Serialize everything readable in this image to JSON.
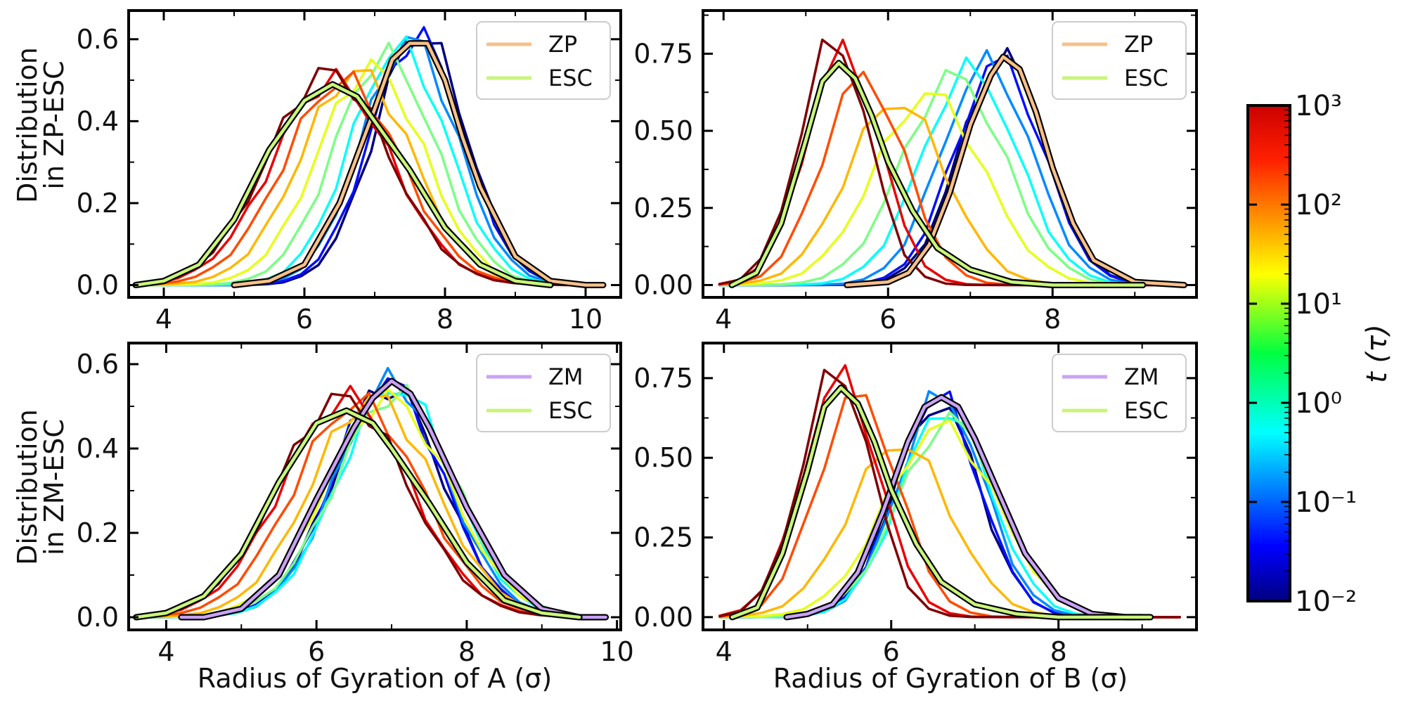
{
  "figure": {
    "ylabel_top": [
      "Distribution",
      "in ZP-ESC"
    ],
    "ylabel_bottom": [
      "Distribution",
      "in ZM-ESC"
    ],
    "xlabel_left": "Radius of Gyration of A (σ)",
    "xlabel_right": "Radius of Gyration of B (σ)",
    "colorbar": {
      "label": "t (τ)",
      "ticks": [
        "10³",
        "10²",
        "10¹",
        "10⁰",
        "10⁻¹",
        "10⁻²"
      ],
      "scale": "log",
      "range": [
        0.01,
        1000
      ],
      "colormap": "jet"
    }
  },
  "chart_data": [
    {
      "type": "line",
      "panel": "top-left",
      "xlim": [
        3.5,
        10.5
      ],
      "ylim": [
        -0.03,
        0.67
      ],
      "xticks": [
        4,
        6,
        8,
        10
      ],
      "xtick_labels": [
        "4",
        "6",
        "8",
        "10"
      ],
      "yticks": [
        0.0,
        0.2,
        0.4,
        0.6
      ],
      "ytick_labels": [
        "0.0",
        "0.2",
        "0.4",
        "0.6"
      ],
      "legend": {
        "placement": "top-right",
        "entries": [
          {
            "label": "ZP",
            "color": "#f7c08a"
          },
          {
            "label": "ESC",
            "color": "#c9f57a"
          }
        ]
      },
      "series": [
        {
          "name": "ZP",
          "color": "#f7c08a",
          "x": [
            5.0,
            5.5,
            6.0,
            6.5,
            7.0,
            7.25,
            7.5,
            7.75,
            8.0,
            8.25,
            8.5,
            9.0,
            9.5,
            10.0,
            10.25
          ],
          "y": [
            0.0,
            0.01,
            0.05,
            0.2,
            0.43,
            0.55,
            0.59,
            0.59,
            0.5,
            0.36,
            0.24,
            0.07,
            0.01,
            0.0,
            0.0
          ]
        },
        {
          "name": "ESC",
          "color": "#c9f57a",
          "x": [
            3.6,
            4.0,
            4.5,
            5.0,
            5.5,
            6.0,
            6.4,
            6.75,
            7.0,
            7.5,
            8.0,
            8.5,
            9.0,
            9.5
          ],
          "y": [
            0.0,
            0.01,
            0.05,
            0.16,
            0.33,
            0.45,
            0.49,
            0.46,
            0.4,
            0.28,
            0.14,
            0.05,
            0.01,
            0.0
          ]
        }
      ],
      "time_curves": [
        {
          "t": 0.01,
          "center": 7.65,
          "width": 0.65,
          "height": 0.62
        },
        {
          "t": 0.05,
          "center": 7.6,
          "width": 0.66,
          "height": 0.61
        },
        {
          "t": 0.2,
          "center": 7.5,
          "width": 0.67,
          "height": 0.6
        },
        {
          "t": 0.8,
          "center": 7.35,
          "width": 0.69,
          "height": 0.58
        },
        {
          "t": 3,
          "center": 7.15,
          "width": 0.72,
          "height": 0.56
        },
        {
          "t": 10,
          "center": 6.95,
          "width": 0.76,
          "height": 0.53
        },
        {
          "t": 30,
          "center": 6.75,
          "width": 0.8,
          "height": 0.52
        },
        {
          "t": 100,
          "center": 6.55,
          "width": 0.83,
          "height": 0.5
        },
        {
          "t": 300,
          "center": 6.4,
          "width": 0.85,
          "height": 0.5
        },
        {
          "t": 1000,
          "center": 6.35,
          "width": 0.86,
          "height": 0.52
        }
      ]
    },
    {
      "type": "line",
      "panel": "top-right",
      "xlim": [
        3.75,
        9.75
      ],
      "ylim": [
        -0.04,
        0.89
      ],
      "xticks": [
        4,
        6,
        8
      ],
      "xtick_labels": [
        "4",
        "6",
        "8"
      ],
      "yticks": [
        0.0,
        0.25,
        0.5,
        0.75
      ],
      "ytick_labels": [
        "0.00",
        "0.25",
        "0.50",
        "0.75"
      ],
      "legend": {
        "placement": "top-right",
        "entries": [
          {
            "label": "ZP",
            "color": "#f7c08a"
          },
          {
            "label": "ESC",
            "color": "#c9f57a"
          }
        ]
      },
      "series": [
        {
          "name": "ZP",
          "color": "#f7c08a",
          "x": [
            5.5,
            6.0,
            6.25,
            6.5,
            6.75,
            7.0,
            7.25,
            7.4,
            7.6,
            7.8,
            8.0,
            8.25,
            8.5,
            9.0,
            9.6
          ],
          "y": [
            0.0,
            0.01,
            0.04,
            0.13,
            0.3,
            0.52,
            0.68,
            0.74,
            0.7,
            0.56,
            0.38,
            0.2,
            0.08,
            0.01,
            0.0
          ]
        },
        {
          "name": "ESC",
          "color": "#c9f57a",
          "x": [
            4.1,
            4.4,
            4.7,
            5.0,
            5.2,
            5.4,
            5.6,
            5.8,
            6.0,
            6.3,
            6.6,
            7.0,
            7.5,
            8.0,
            8.5,
            9.1
          ],
          "y": [
            0.0,
            0.04,
            0.2,
            0.47,
            0.66,
            0.72,
            0.67,
            0.55,
            0.4,
            0.24,
            0.12,
            0.05,
            0.01,
            0.0,
            0.0,
            0.0
          ]
        }
      ],
      "time_curves": [
        {
          "t": 0.01,
          "center": 7.4,
          "width": 0.52,
          "height": 0.74
        },
        {
          "t": 0.05,
          "center": 7.35,
          "width": 0.53,
          "height": 0.73
        },
        {
          "t": 0.2,
          "center": 7.2,
          "width": 0.55,
          "height": 0.72
        },
        {
          "t": 0.8,
          "center": 7.0,
          "width": 0.58,
          "height": 0.7
        },
        {
          "t": 3,
          "center": 6.8,
          "width": 0.62,
          "height": 0.68
        },
        {
          "t": 10,
          "center": 6.5,
          "width": 0.66,
          "height": 0.62
        },
        {
          "t": 30,
          "center": 6.1,
          "width": 0.6,
          "height": 0.6
        },
        {
          "t": 100,
          "center": 5.7,
          "width": 0.5,
          "height": 0.68
        },
        {
          "t": 300,
          "center": 5.45,
          "width": 0.45,
          "height": 0.76
        },
        {
          "t": 1000,
          "center": 5.35,
          "width": 0.42,
          "height": 0.8
        }
      ]
    },
    {
      "type": "line",
      "panel": "bottom-left",
      "xlim": [
        3.5,
        10.05
      ],
      "ylim": [
        -0.03,
        0.65
      ],
      "xticks": [
        4,
        6,
        8,
        10
      ],
      "xtick_labels": [
        "4",
        "6",
        "8",
        "10"
      ],
      "yticks": [
        0.0,
        0.2,
        0.4,
        0.6
      ],
      "ytick_labels": [
        "0.0",
        "0.2",
        "0.4",
        "0.6"
      ],
      "legend": {
        "placement": "top-right",
        "entries": [
          {
            "label": "ZM",
            "color": "#c9a2f5"
          },
          {
            "label": "ESC",
            "color": "#c9f57a"
          }
        ]
      },
      "series": [
        {
          "name": "ZM",
          "color": "#c9a2f5",
          "x": [
            4.2,
            4.5,
            5.0,
            5.5,
            6.0,
            6.5,
            6.75,
            7.0,
            7.25,
            7.5,
            8.0,
            8.5,
            9.0,
            9.5,
            9.85
          ],
          "y": [
            0.0,
            0.0,
            0.02,
            0.1,
            0.28,
            0.45,
            0.52,
            0.56,
            0.53,
            0.45,
            0.26,
            0.1,
            0.02,
            0.0,
            0.0
          ]
        },
        {
          "name": "ESC",
          "color": "#c9f57a",
          "x": [
            3.6,
            4.0,
            4.5,
            5.0,
            5.5,
            6.0,
            6.4,
            6.75,
            7.0,
            7.5,
            8.0,
            8.5,
            9.0,
            9.5
          ],
          "y": [
            0.0,
            0.01,
            0.05,
            0.15,
            0.32,
            0.46,
            0.49,
            0.46,
            0.4,
            0.27,
            0.13,
            0.04,
            0.01,
            0.0
          ]
        }
      ],
      "time_curves": [
        {
          "t": 0.01,
          "center": 6.95,
          "width": 0.72,
          "height": 0.55
        },
        {
          "t": 0.05,
          "center": 6.95,
          "width": 0.72,
          "height": 0.56
        },
        {
          "t": 0.2,
          "center": 7.0,
          "width": 0.73,
          "height": 0.56
        },
        {
          "t": 0.8,
          "center": 7.05,
          "width": 0.75,
          "height": 0.55
        },
        {
          "t": 3,
          "center": 7.05,
          "width": 0.8,
          "height": 0.53
        },
        {
          "t": 10,
          "center": 6.95,
          "width": 0.82,
          "height": 0.52
        },
        {
          "t": 30,
          "center": 6.75,
          "width": 0.82,
          "height": 0.52
        },
        {
          "t": 100,
          "center": 6.55,
          "width": 0.84,
          "height": 0.51
        },
        {
          "t": 300,
          "center": 6.4,
          "width": 0.85,
          "height": 0.52
        },
        {
          "t": 1000,
          "center": 6.35,
          "width": 0.86,
          "height": 0.52
        }
      ]
    },
    {
      "type": "line",
      "panel": "bottom-right",
      "xlim": [
        3.75,
        9.65
      ],
      "ylim": [
        -0.04,
        0.86
      ],
      "xticks": [
        4,
        6,
        8
      ],
      "xtick_labels": [
        "4",
        "6",
        "8"
      ],
      "yticks": [
        0.0,
        0.25,
        0.5,
        0.75
      ],
      "ytick_labels": [
        "0.00",
        "0.25",
        "0.50",
        "0.75"
      ],
      "legend": {
        "placement": "top-right",
        "entries": [
          {
            "label": "ZM",
            "color": "#c9a2f5"
          },
          {
            "label": "ESC",
            "color": "#c9f57a"
          }
        ]
      },
      "series": [
        {
          "name": "ZM",
          "color": "#c9a2f5",
          "x": [
            4.75,
            5.0,
            5.3,
            5.6,
            5.9,
            6.2,
            6.4,
            6.6,
            6.8,
            7.0,
            7.3,
            7.6,
            8.0,
            8.4,
            8.8,
            9.0
          ],
          "y": [
            0.0,
            0.01,
            0.04,
            0.14,
            0.33,
            0.55,
            0.66,
            0.69,
            0.66,
            0.56,
            0.38,
            0.2,
            0.06,
            0.01,
            0.0,
            0.0
          ]
        },
        {
          "name": "ESC",
          "color": "#c9f57a",
          "x": [
            4.1,
            4.4,
            4.7,
            5.0,
            5.2,
            5.4,
            5.6,
            5.8,
            6.0,
            6.3,
            6.6,
            7.0,
            7.5,
            8.0,
            8.5,
            9.1
          ],
          "y": [
            0.0,
            0.03,
            0.2,
            0.46,
            0.66,
            0.72,
            0.67,
            0.55,
            0.4,
            0.23,
            0.11,
            0.04,
            0.01,
            0.0,
            0.0,
            0.0
          ]
        }
      ],
      "time_curves": [
        {
          "t": 0.01,
          "center": 6.55,
          "width": 0.5,
          "height": 0.68
        },
        {
          "t": 0.05,
          "center": 6.55,
          "width": 0.5,
          "height": 0.7
        },
        {
          "t": 0.2,
          "center": 6.6,
          "width": 0.51,
          "height": 0.7
        },
        {
          "t": 0.8,
          "center": 6.65,
          "width": 0.54,
          "height": 0.66
        },
        {
          "t": 3,
          "center": 6.7,
          "width": 0.6,
          "height": 0.62
        },
        {
          "t": 10,
          "center": 6.6,
          "width": 0.66,
          "height": 0.6
        },
        {
          "t": 30,
          "center": 6.1,
          "width": 0.6,
          "height": 0.55
        },
        {
          "t": 100,
          "center": 5.6,
          "width": 0.48,
          "height": 0.7
        },
        {
          "t": 300,
          "center": 5.4,
          "width": 0.45,
          "height": 0.76
        },
        {
          "t": 1000,
          "center": 5.35,
          "width": 0.42,
          "height": 0.78
        }
      ]
    }
  ]
}
